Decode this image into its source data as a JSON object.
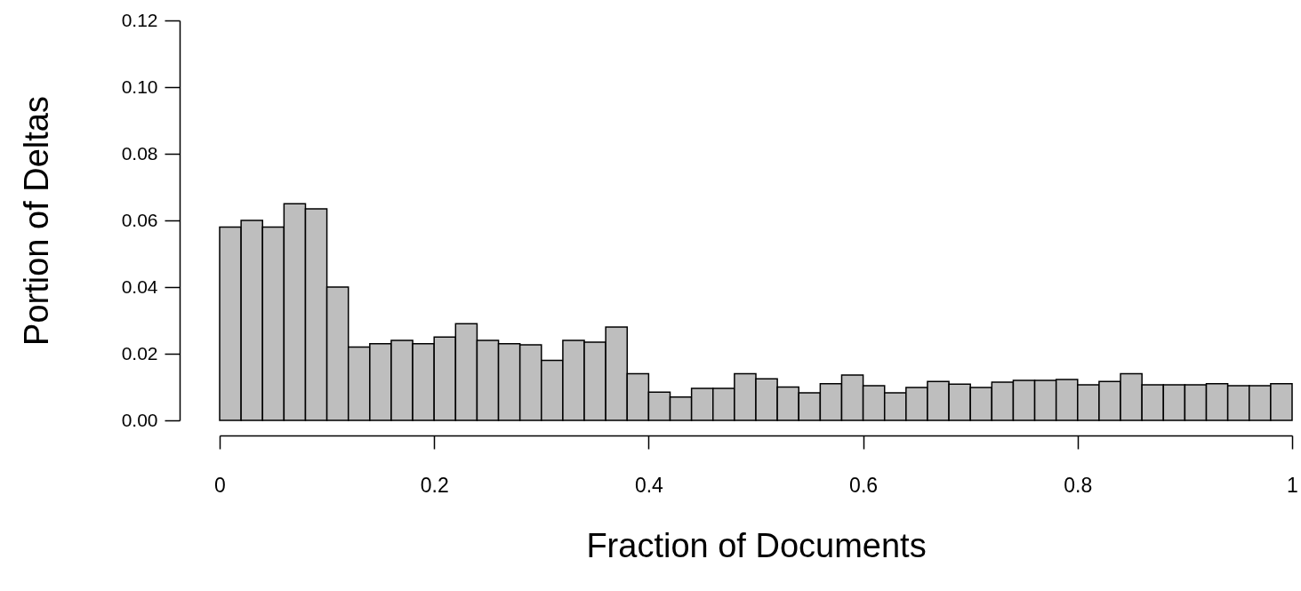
{
  "chart_data": {
    "type": "histogram",
    "xlabel": "Fraction of Documents",
    "ylabel": "Portion of Deltas",
    "color": "#bebebe",
    "bins": [
      0,
      0.02,
      0.04,
      0.06,
      0.08,
      0.1,
      0.12,
      0.14,
      0.16,
      0.18,
      0.2,
      0.22,
      0.24,
      0.26,
      0.28,
      0.3,
      0.32,
      0.34,
      0.36,
      0.38,
      0.4,
      0.42,
      0.44,
      0.46,
      0.48,
      0.5,
      0.52,
      0.54,
      0.56,
      0.58,
      0.6,
      0.62,
      0.64,
      0.66,
      0.68,
      0.7,
      0.72,
      0.74,
      0.76,
      0.78,
      0.8,
      0.82,
      0.84,
      0.86,
      0.88,
      0.9,
      0.92,
      0.94,
      0.96,
      0.98,
      1
    ],
    "values": [
      0.058,
      0.06,
      0.058,
      0.065,
      0.0635,
      0.04,
      0.022,
      0.023,
      0.024,
      0.023,
      0.025,
      0.029,
      0.024,
      0.023,
      0.0227,
      0.018,
      0.024,
      0.0235,
      0.028,
      0.014,
      0.0085,
      0.007,
      0.0096,
      0.0096,
      0.014,
      0.0125,
      0.01,
      0.0083,
      0.011,
      0.0136,
      0.0104,
      0.0083,
      0.0099,
      0.0117,
      0.0109,
      0.0099,
      0.0115,
      0.012,
      0.012,
      0.0123,
      0.0107,
      0.0117,
      0.014,
      0.0107,
      0.0107,
      0.0107,
      0.011,
      0.0104,
      0.0104,
      0.011
    ],
    "xlim": [
      0,
      1
    ],
    "ylim": [
      0,
      0.12
    ],
    "xticks": [
      0,
      0.2,
      0.4,
      0.6,
      0.8,
      1
    ],
    "yticks": [
      {
        "value": 0,
        "label": "0.00"
      },
      {
        "value": 0.02,
        "label": "0.02"
      },
      {
        "value": 0.04,
        "label": "0.04"
      },
      {
        "value": 0.06,
        "label": "0.06"
      },
      {
        "value": 0.08,
        "label": "0.08"
      },
      {
        "value": 0.1,
        "label": "0.10"
      },
      {
        "value": 0.12,
        "label": "0.12"
      }
    ]
  }
}
